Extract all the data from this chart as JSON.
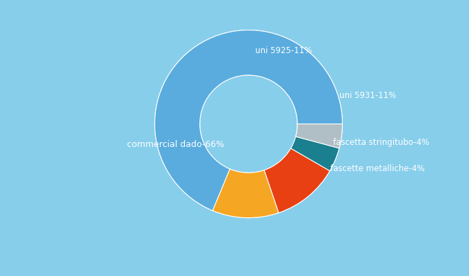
{
  "labels": [
    "commercial dado",
    "uni 5925",
    "uni 5931",
    "fascetta stringitubo",
    "fascette metalliche"
  ],
  "values": [
    66,
    11,
    11,
    4,
    4
  ],
  "colors": [
    "#5aacde",
    "#f5a623",
    "#e84012",
    "#1a7f8e",
    "#b0bec5"
  ],
  "shadow_colors": [
    "#3a80b8",
    "#c07800",
    "#b02800",
    "#0a5060",
    "#808a90"
  ],
  "label_texts": [
    "commercial dado-66%",
    "uni 5925-11%",
    "uni 5931-11%",
    "fascetta stringitubo-4%",
    "fascette metalliche-4%"
  ],
  "background_color": "#87ceeb",
  "start_angle": 90
}
